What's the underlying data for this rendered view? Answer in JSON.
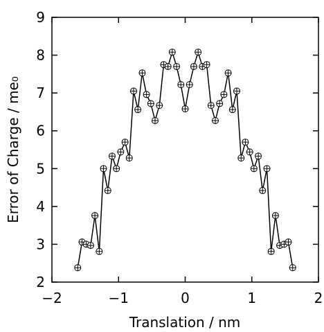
{
  "chart_data": {
    "type": "line",
    "xlabel": "Translation / nm",
    "ylabel": "Error of Charge / me₀",
    "x": [
      -1.613,
      -1.548,
      -1.484,
      -1.419,
      -1.355,
      -1.29,
      -1.226,
      -1.161,
      -1.097,
      -1.032,
      -0.968,
      -0.903,
      -0.839,
      -0.774,
      -0.71,
      -0.645,
      -0.581,
      -0.516,
      -0.452,
      -0.387,
      -0.323,
      -0.258,
      -0.194,
      -0.129,
      -0.065,
      0,
      0.065,
      0.129,
      0.194,
      0.258,
      0.323,
      0.387,
      0.452,
      0.516,
      0.581,
      0.645,
      0.71,
      0.774,
      0.839,
      0.903,
      0.968,
      1.032,
      1.097,
      1.161,
      1.226,
      1.29,
      1.355,
      1.419,
      1.484,
      1.548,
      1.613
    ],
    "series": [
      {
        "color": "#000000",
        "marker": "circle-plus",
        "values": [
          2.38,
          3.06,
          3.0,
          2.97,
          3.76,
          2.81,
          5.0,
          4.42,
          5.33,
          5.0,
          5.44,
          5.7,
          5.28,
          7.05,
          6.56,
          7.53,
          6.96,
          6.72,
          6.27,
          6.67,
          7.75,
          7.7,
          8.08,
          7.7,
          7.22,
          6.58,
          7.22,
          7.7,
          8.08,
          7.7,
          7.75,
          6.67,
          6.27,
          6.72,
          6.96,
          7.53,
          6.56,
          7.05,
          5.28,
          5.7,
          5.44,
          5.0,
          5.33,
          4.42,
          5.0,
          2.81,
          3.76,
          2.97,
          3.0,
          3.06,
          2.38
        ]
      }
    ],
    "xlim": [
      -2,
      2
    ],
    "xticks": [
      {
        "value": -2,
        "label": "−2"
      },
      {
        "value": -1,
        "label": "−1"
      },
      0,
      1,
      2
    ],
    "ylim": [
      2,
      9
    ],
    "yticks": [
      2,
      3,
      4,
      5,
      6,
      7,
      8,
      9
    ],
    "grid": false
  }
}
